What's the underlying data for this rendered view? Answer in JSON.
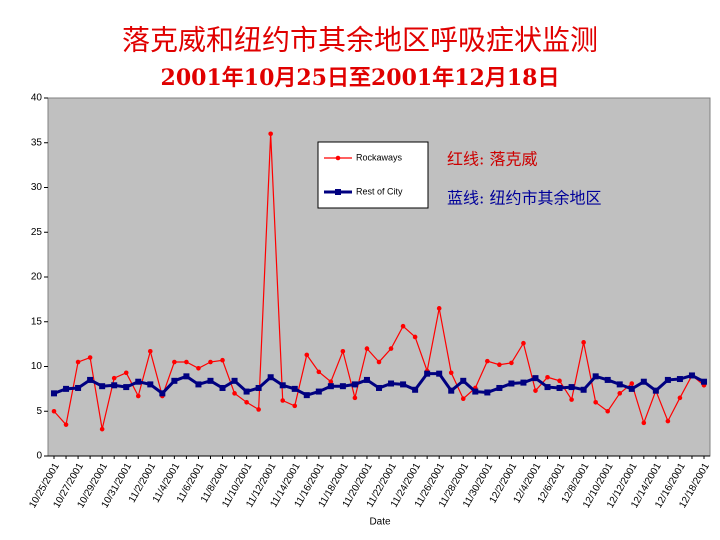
{
  "chart_data": {
    "type": "line",
    "title": "落克威和纽约市其余地区呼吸症状监测",
    "subtitle": "2001年10月25日至2001年12月18日",
    "x_label": "Date",
    "categories": [
      "10/25/2001",
      null,
      "10/27/2001",
      null,
      "10/29/2001",
      null,
      "10/31/2001",
      null,
      "11/2/2001",
      null,
      "11/4/2001",
      null,
      "11/6/2001",
      null,
      "11/8/2001",
      null,
      "11/10/2001",
      null,
      "11/12/2001",
      null,
      "11/14/2001",
      null,
      "11/16/2001",
      null,
      "11/18/2001",
      null,
      "11/20/2001",
      null,
      "11/22/2001",
      null,
      "11/24/2001",
      null,
      "11/26/2001",
      null,
      "11/28/2001",
      null,
      "11/30/2001",
      null,
      "12/2/2001",
      null,
      "12/4/2001",
      null,
      "12/6/2001",
      null,
      "12/8/2001",
      null,
      "12/10/2001",
      null,
      "12/12/2001",
      null,
      "12/14/2001",
      null,
      "12/16/2001",
      null,
      "12/18/2001"
    ],
    "series": [
      {
        "name": "Rockaways",
        "color": "#ff0000",
        "values": [
          5,
          3.5,
          10.5,
          11,
          3,
          8.7,
          9.3,
          6.7,
          11.7,
          6.7,
          10.5,
          10.5,
          9.8,
          10.5,
          10.7,
          7,
          6,
          5.2,
          36,
          6.2,
          5.6,
          11.3,
          9.4,
          8.3,
          11.7,
          6.5,
          12,
          10.5,
          12,
          14.5,
          13.3,
          9.5,
          16.5,
          9.3,
          6.4,
          7.6,
          10.6,
          10.2,
          10.4,
          12.6,
          7.3,
          8.8,
          8.4,
          6.3,
          12.7,
          6,
          5,
          7,
          8.1,
          3.7,
          7.3,
          3.9,
          6.5,
          9,
          7.9
        ]
      },
      {
        "name": "Rest of City",
        "color": "#000080",
        "values": [
          7,
          7.5,
          7.6,
          8.5,
          7.8,
          7.9,
          7.7,
          8.3,
          8,
          7,
          8.4,
          8.9,
          8,
          8.4,
          7.6,
          8.4,
          7.2,
          7.6,
          8.8,
          7.9,
          7.5,
          6.8,
          7.2,
          7.8,
          7.8,
          8,
          8.5,
          7.6,
          8.1,
          8,
          7.4,
          9.2,
          9.2,
          7.3,
          8.4,
          7.2,
          7.1,
          7.6,
          8.1,
          8.2,
          8.7,
          7.7,
          7.6,
          7.7,
          7.4,
          8.9,
          8.5,
          8,
          7.5,
          8.3,
          7.3,
          8.5,
          8.6,
          9,
          8.3
        ]
      }
    ],
    "annotations": [
      {
        "text": "红线: 落克威",
        "color": "#cc0000"
      },
      {
        "text": "蓝线: 纽约市其余地区",
        "color": "#000099"
      }
    ],
    "ylim": [
      0,
      40
    ],
    "yticks": [
      0,
      5,
      10,
      15,
      20,
      25,
      30,
      35,
      40
    ],
    "plot_background": "#c0c0c0"
  }
}
